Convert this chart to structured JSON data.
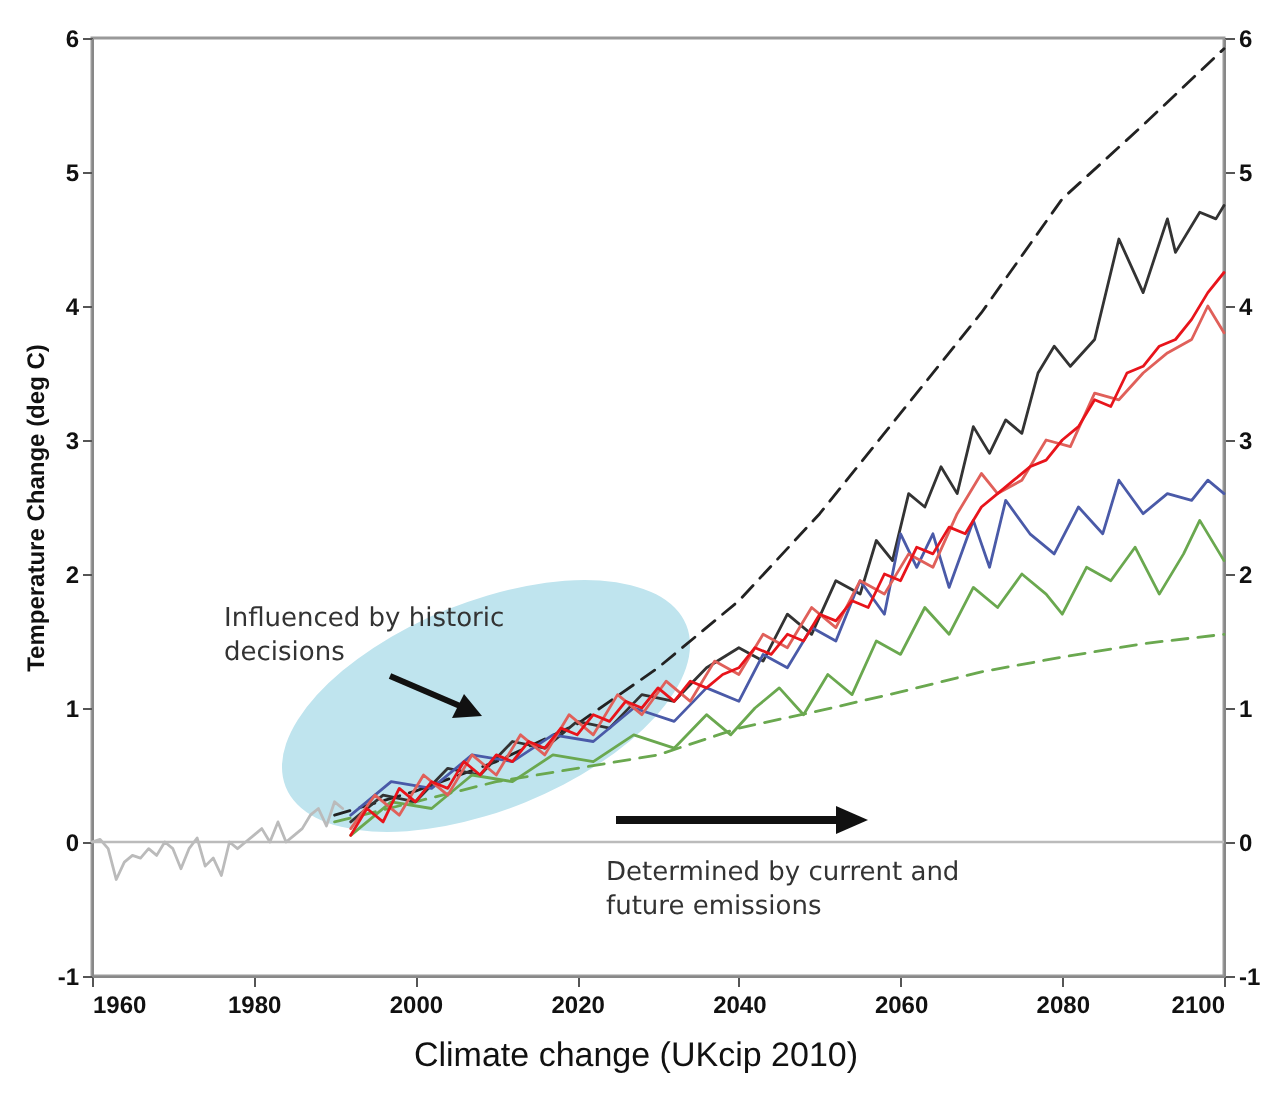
{
  "chart_data": {
    "type": "line",
    "ylabel": "Temperature Change (deg C)",
    "annotations": [
      "Influenced by historic decisions",
      "Determined by current and future emissions",
      "Climate change (UKcip 2010)"
    ],
    "xlim": [
      1960,
      2100
    ],
    "xticks": [
      1960,
      1980,
      2000,
      2020,
      2040,
      2060,
      2080,
      2100
    ],
    "ylim": [
      -1,
      6
    ],
    "yticks": [
      -1,
      0,
      1,
      2,
      3,
      4,
      5,
      6
    ],
    "y2lim": [
      -1,
      6
    ],
    "y2ticks": [
      -1,
      0,
      1,
      2,
      3,
      4,
      5,
      6
    ],
    "ref_lines": [
      {
        "axis": "y",
        "value": 0,
        "color": "#bbbbbb"
      }
    ],
    "series": [
      {
        "color": "#bbbbbb",
        "x": [
          1960,
          1961,
          1962,
          1963,
          1964,
          1965,
          1966,
          1967,
          1968,
          1969,
          1970,
          1971,
          1972,
          1973,
          1974,
          1975,
          1976,
          1977,
          1978,
          1979,
          1980,
          1981,
          1982,
          1983,
          1984,
          1985,
          1986,
          1987,
          1988,
          1989,
          1990,
          1991
        ],
        "values": [
          0.0,
          0.02,
          -0.05,
          -0.28,
          -0.15,
          -0.1,
          -0.12,
          -0.05,
          -0.1,
          0.0,
          -0.05,
          -0.2,
          -0.05,
          0.03,
          -0.18,
          -0.12,
          -0.25,
          0.0,
          -0.05,
          0.0,
          0.05,
          0.1,
          0.0,
          0.15,
          0.0,
          0.05,
          0.1,
          0.2,
          0.25,
          0.12,
          0.3,
          0.25
        ]
      },
      {
        "color": "#222222",
        "line_style": "dashed",
        "x": [
          1990,
          2000,
          2010,
          2020,
          2030,
          2040,
          2050,
          2060,
          2070,
          2080,
          2090,
          2100
        ],
        "values": [
          0.2,
          0.38,
          0.6,
          0.88,
          1.3,
          1.8,
          2.45,
          3.2,
          3.95,
          4.8,
          5.35,
          5.92
        ]
      },
      {
        "color": "#6aa84f",
        "line_style": "dashed",
        "x": [
          1990,
          2000,
          2010,
          2020,
          2030,
          2040,
          2050,
          2060,
          2070,
          2080,
          2090,
          2100
        ],
        "values": [
          0.15,
          0.3,
          0.45,
          0.55,
          0.65,
          0.85,
          0.98,
          1.12,
          1.27,
          1.38,
          1.48,
          1.55
        ]
      },
      {
        "color": "#333333",
        "x": [
          1992,
          1996,
          2000,
          2004,
          2008,
          2012,
          2016,
          2020,
          2024,
          2028,
          2032,
          2036,
          2040,
          2043,
          2046,
          2049,
          2052,
          2055,
          2057,
          2059,
          2061,
          2063,
          2065,
          2067,
          2069,
          2071,
          2073,
          2075,
          2077,
          2079,
          2081,
          2084,
          2087,
          2090,
          2093,
          2094,
          2097,
          2099,
          2100
        ],
        "values": [
          0.15,
          0.35,
          0.3,
          0.55,
          0.5,
          0.75,
          0.7,
          0.9,
          0.85,
          1.1,
          1.05,
          1.3,
          1.45,
          1.35,
          1.7,
          1.55,
          1.95,
          1.85,
          2.25,
          2.1,
          2.6,
          2.5,
          2.8,
          2.6,
          3.1,
          2.9,
          3.15,
          3.05,
          3.5,
          3.7,
          3.55,
          3.75,
          4.5,
          4.1,
          4.65,
          4.4,
          4.7,
          4.65,
          4.75
        ]
      },
      {
        "color": "#4a5aa8",
        "x": [
          1992,
          1997,
          2002,
          2007,
          2012,
          2017,
          2022,
          2027,
          2032,
          2036,
          2040,
          2043,
          2046,
          2049,
          2052,
          2055,
          2058,
          2060,
          2062,
          2064,
          2066,
          2069,
          2071,
          2073,
          2076,
          2079,
          2082,
          2085,
          2087,
          2090,
          2093,
          2096,
          2098,
          2100
        ],
        "values": [
          0.2,
          0.45,
          0.4,
          0.65,
          0.6,
          0.8,
          0.75,
          1.0,
          0.9,
          1.15,
          1.05,
          1.4,
          1.3,
          1.6,
          1.5,
          1.95,
          1.7,
          2.3,
          2.05,
          2.3,
          1.9,
          2.4,
          2.05,
          2.55,
          2.3,
          2.15,
          2.5,
          2.3,
          2.7,
          2.45,
          2.6,
          2.55,
          2.7,
          2.6
        ]
      },
      {
        "color": "#6aa84f",
        "x": [
          1992,
          1997,
          2002,
          2007,
          2012,
          2017,
          2022,
          2027,
          2032,
          2036,
          2039,
          2042,
          2045,
          2048,
          2051,
          2054,
          2057,
          2060,
          2063,
          2066,
          2069,
          2072,
          2075,
          2078,
          2080,
          2083,
          2086,
          2089,
          2092,
          2095,
          2097,
          2100
        ],
        "values": [
          0.05,
          0.3,
          0.25,
          0.5,
          0.45,
          0.65,
          0.6,
          0.8,
          0.7,
          0.95,
          0.8,
          1.0,
          1.15,
          0.95,
          1.25,
          1.1,
          1.5,
          1.4,
          1.75,
          1.55,
          1.9,
          1.75,
          2.0,
          1.85,
          1.7,
          2.05,
          1.95,
          2.2,
          1.85,
          2.15,
          2.4,
          2.1
        ]
      },
      {
        "color": "#e0605a",
        "x": [
          1992,
          1995,
          1998,
          2001,
          2004,
          2007,
          2010,
          2013,
          2016,
          2019,
          2022,
          2025,
          2028,
          2031,
          2034,
          2037,
          2040,
          2043,
          2046,
          2049,
          2052,
          2055,
          2058,
          2061,
          2064,
          2067,
          2070,
          2072,
          2075,
          2078,
          2081,
          2084,
          2087,
          2090,
          2093,
          2096,
          2098,
          2100
        ],
        "values": [
          0.1,
          0.35,
          0.2,
          0.5,
          0.35,
          0.65,
          0.5,
          0.8,
          0.65,
          0.95,
          0.8,
          1.1,
          0.95,
          1.2,
          1.05,
          1.35,
          1.25,
          1.55,
          1.45,
          1.75,
          1.6,
          1.95,
          1.85,
          2.15,
          2.05,
          2.45,
          2.75,
          2.6,
          2.7,
          3.0,
          2.95,
          3.35,
          3.3,
          3.5,
          3.65,
          3.75,
          4.0,
          3.8
        ]
      },
      {
        "color": "#e8141b",
        "x": [
          1992,
          1994,
          1996,
          1998,
          2000,
          2002,
          2004,
          2006,
          2008,
          2010,
          2012,
          2014,
          2016,
          2018,
          2020,
          2022,
          2024,
          2026,
          2028,
          2030,
          2032,
          2034,
          2036,
          2038,
          2040,
          2042,
          2044,
          2046,
          2048,
          2050,
          2052,
          2054,
          2056,
          2058,
          2060,
          2062,
          2064,
          2066,
          2068,
          2070,
          2072,
          2074,
          2076,
          2078,
          2080,
          2082,
          2084,
          2086,
          2088,
          2090,
          2092,
          2094,
          2096,
          2098,
          2100
        ],
        "values": [
          0.05,
          0.25,
          0.15,
          0.4,
          0.3,
          0.45,
          0.4,
          0.6,
          0.5,
          0.65,
          0.6,
          0.75,
          0.7,
          0.85,
          0.8,
          0.95,
          0.9,
          1.05,
          1.0,
          1.15,
          1.05,
          1.2,
          1.15,
          1.25,
          1.3,
          1.45,
          1.4,
          1.55,
          1.5,
          1.7,
          1.65,
          1.8,
          1.75,
          2.0,
          1.95,
          2.2,
          2.15,
          2.35,
          2.3,
          2.5,
          2.6,
          2.7,
          2.8,
          2.85,
          3.0,
          3.1,
          3.3,
          3.25,
          3.5,
          3.55,
          3.7,
          3.75,
          3.9,
          4.1,
          4.25
        ]
      }
    ]
  }
}
